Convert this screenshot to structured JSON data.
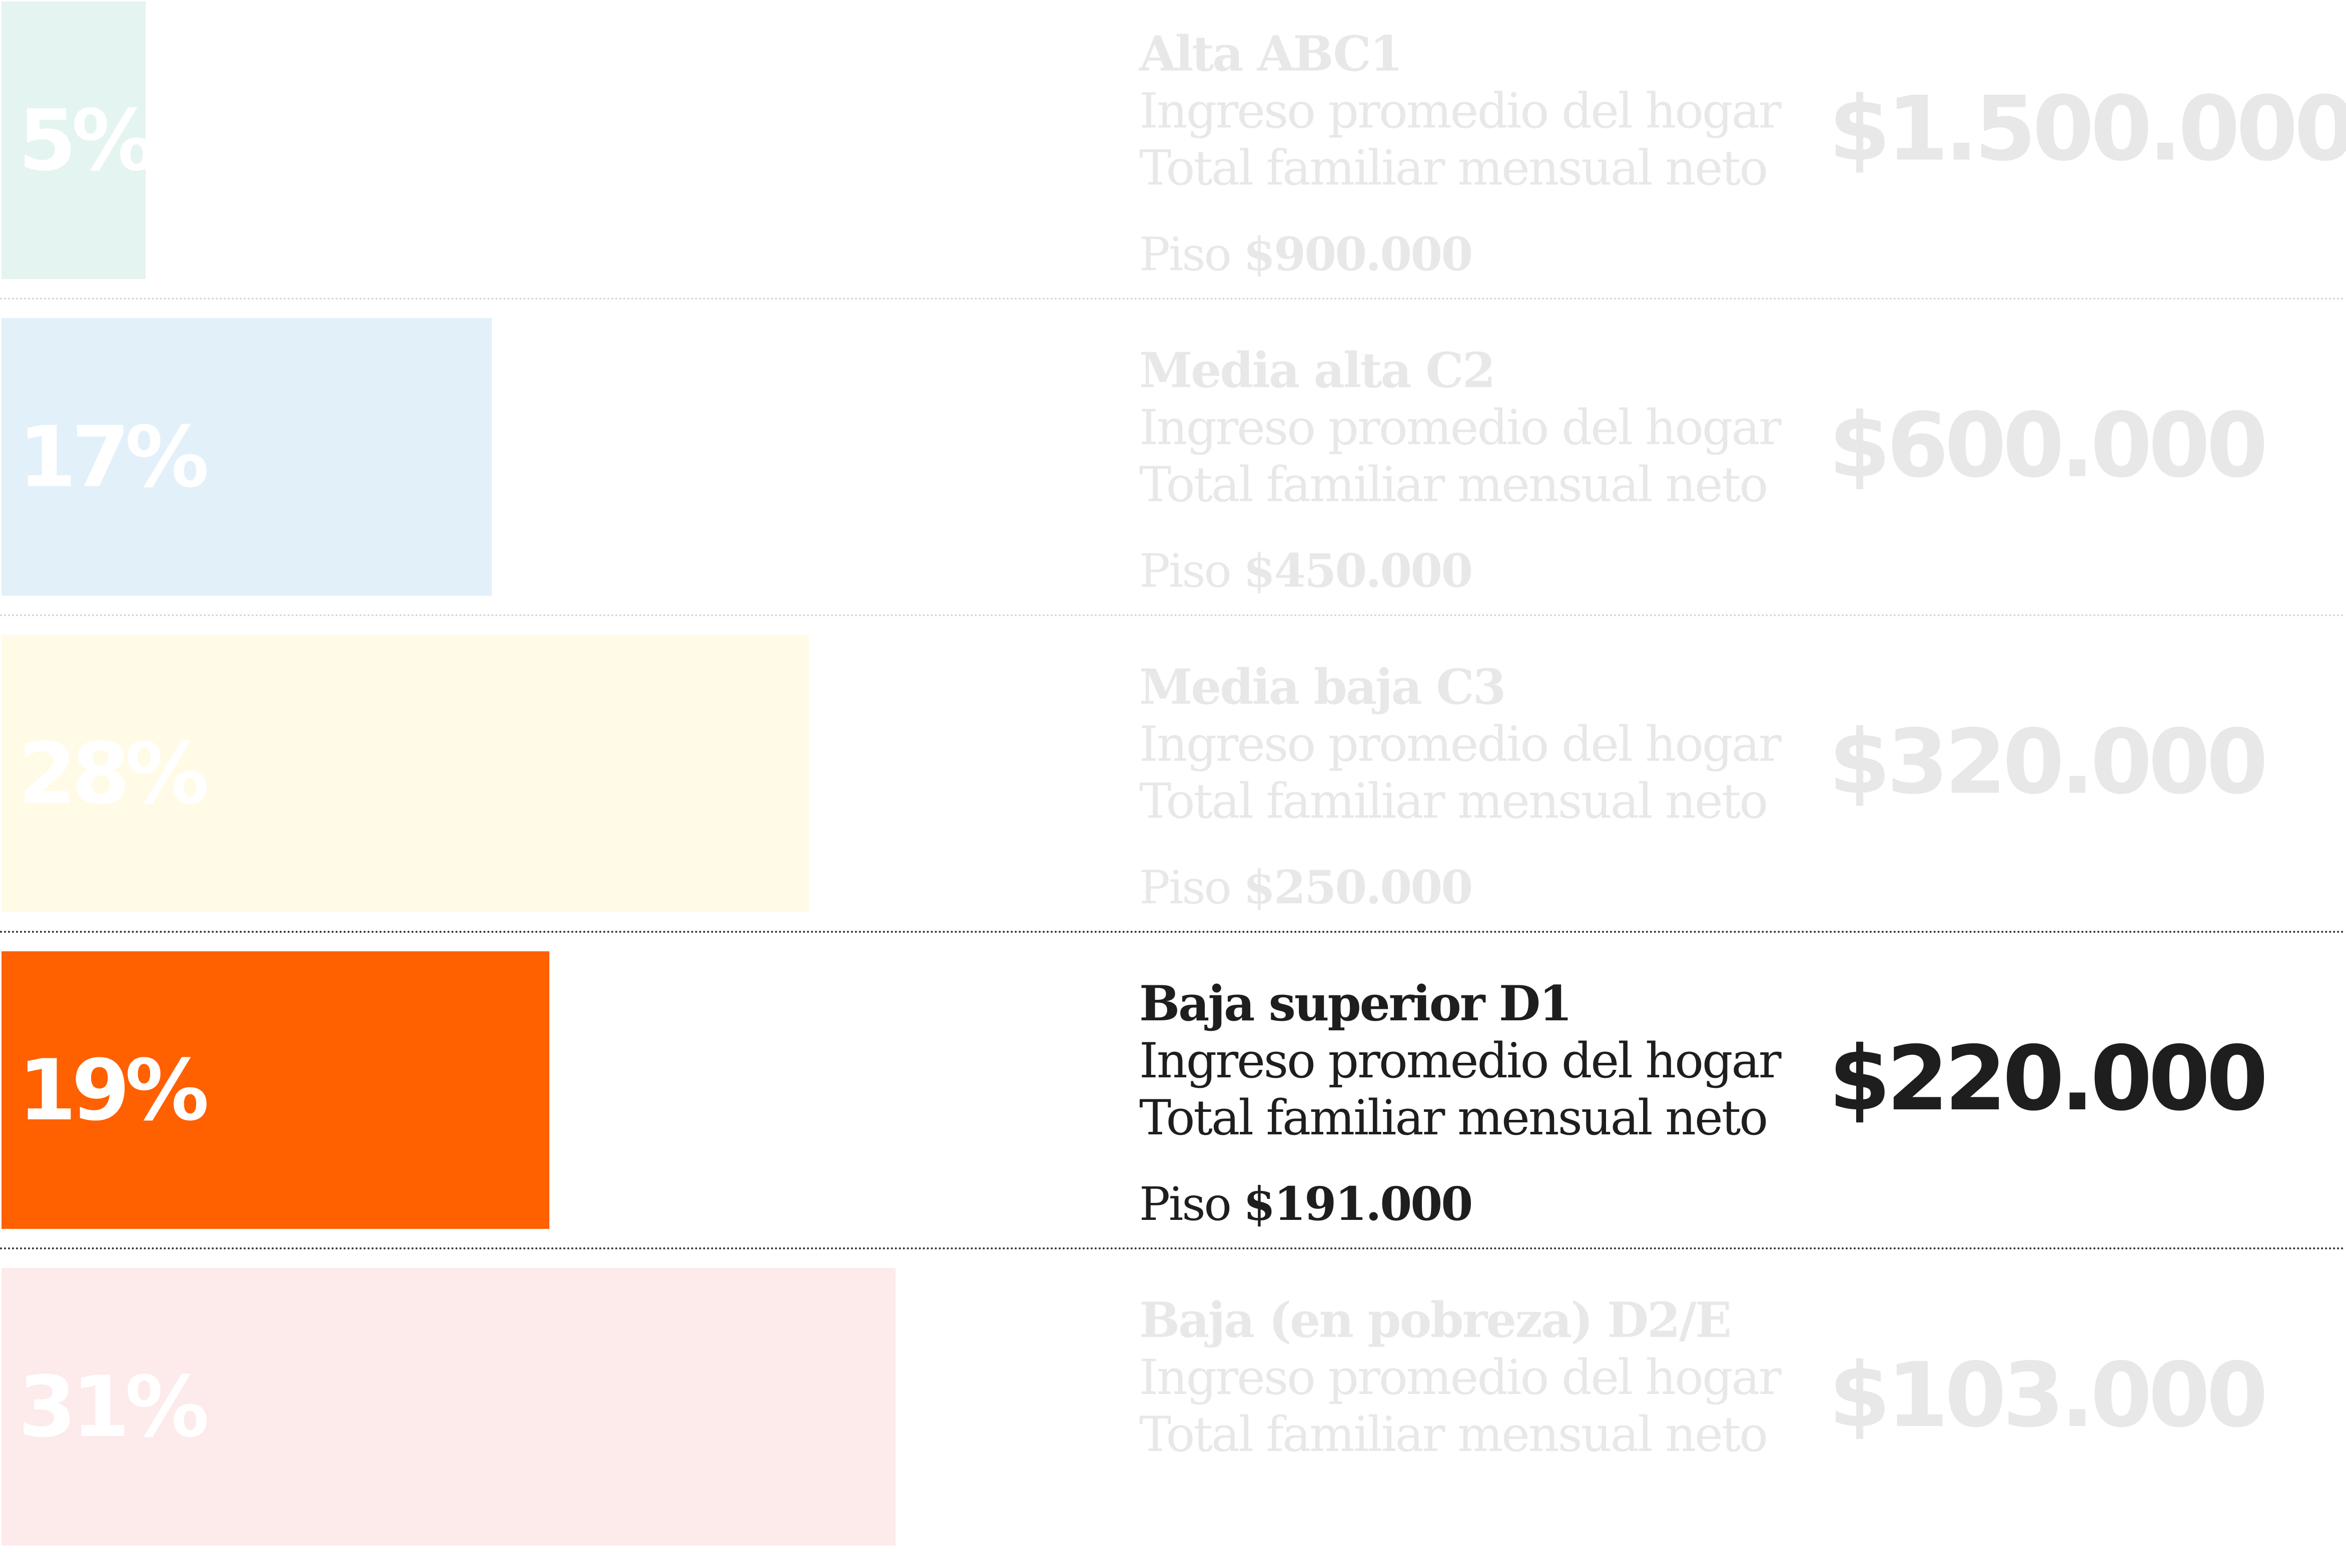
{
  "chart_data": {
    "type": "bar",
    "orientation": "horizontal",
    "xlim": [
      0,
      100
    ],
    "highlighted_category": "Baja superior D1",
    "rows": [
      {
        "share_pct": 5,
        "share_label": "5%",
        "class_name": "Alta ABC1",
        "line2": "Ingreso promedio del hogar",
        "line3": "Total familiar mensual neto",
        "avg_income": "$1.500.000",
        "piso_label": "Piso ",
        "piso_value": "$900.000",
        "color": "#e4f4f1",
        "highlight": false
      },
      {
        "share_pct": 17,
        "share_label": "17%",
        "class_name": "Media alta C2",
        "line2": "Ingreso promedio del hogar",
        "line3": "Total familiar mensual neto",
        "avg_income": "$600.000",
        "piso_label": "Piso ",
        "piso_value": "$450.000",
        "color": "#e2f0f9",
        "highlight": false
      },
      {
        "share_pct": 28,
        "share_label": "28%",
        "class_name": "Media baja C3",
        "line2": "Ingreso promedio del hogar",
        "line3": "Total familiar mensual neto",
        "avg_income": "$320.000",
        "piso_label": "Piso ",
        "piso_value": "$250.000",
        "color": "#fffbe6",
        "highlight": false
      },
      {
        "share_pct": 19,
        "share_label": "19%",
        "class_name": "Baja superior D1",
        "line2": "Ingreso promedio del hogar",
        "line3": "Total familiar mensual neto",
        "avg_income": "$220.000",
        "piso_label": "Piso ",
        "piso_value": "$191.000",
        "color": "#ff6000",
        "highlight": true
      },
      {
        "share_pct": 31,
        "share_label": "31%",
        "class_name": "Baja (en pobreza) D2/E",
        "line2": "Ingreso promedio del hogar",
        "line3": "Total familiar mensual neto",
        "avg_income": "$103.000",
        "piso_label": "",
        "piso_value": "",
        "color": "#fdeaea",
        "highlight": false
      }
    ]
  }
}
